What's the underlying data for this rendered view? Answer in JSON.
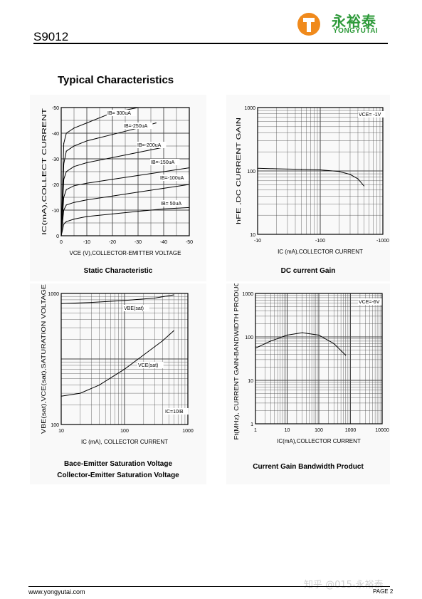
{
  "header": {
    "brand_cn": "永裕泰",
    "brand_en": "YONGYUTAI",
    "part_number": "S9012"
  },
  "section_title": "Typical Characteristics",
  "footer": {
    "website": "www.yongyutai.com",
    "page": "PAGE  2",
    "watermark": "知乎 @015-永裕泰"
  },
  "chart_data": [
    {
      "type": "line",
      "caption": "Static Characteristic",
      "xlabel": "VCE (V),COLLECTOR-EMITTER VOLTAGE",
      "ylabel": "IC(mA),COLLECT CURRENT",
      "xlim": [
        0,
        -50
      ],
      "ylim": [
        0,
        -50
      ],
      "x_ticks": [
        "0",
        "-10",
        "-20",
        "-30",
        "-40",
        "-50"
      ],
      "y_ticks": [
        "-50",
        "-40",
        "-30",
        "-20",
        "-10",
        "0"
      ],
      "series": [
        {
          "name": "IB= 300uA",
          "x": [
            0,
            -1,
            -2,
            -5,
            -10,
            -20,
            -30
          ],
          "y": [
            0,
            -36,
            -40,
            -42,
            -44,
            -48,
            -52
          ]
        },
        {
          "name": "IB=-250uA",
          "x": [
            0,
            -1,
            -2,
            -5,
            -10,
            -20,
            -30,
            -37
          ],
          "y": [
            0,
            -28,
            -33,
            -35,
            -37,
            -39.5,
            -42,
            -44
          ]
        },
        {
          "name": "IB=-200uA",
          "x": [
            0,
            -1,
            -2,
            -5,
            -10,
            -20,
            -30,
            -40
          ],
          "y": [
            0,
            -22,
            -25,
            -27,
            -28.5,
            -30.5,
            -32.5,
            -34.5
          ]
        },
        {
          "name": "IB=-150uA",
          "x": [
            0,
            -1,
            -2,
            -5,
            -10,
            -20,
            -30,
            -40,
            -50
          ],
          "y": [
            0,
            -15,
            -18,
            -19.5,
            -20.5,
            -22,
            -23.5,
            -25,
            -26.5
          ]
        },
        {
          "name": "IB=-100uA",
          "x": [
            0,
            -1,
            -2,
            -5,
            -10,
            -20,
            -30,
            -40,
            -50
          ],
          "y": [
            0,
            -10,
            -12,
            -13,
            -14,
            -15.5,
            -17,
            -18.5,
            -20
          ]
        },
        {
          "name": "IB= 50uA",
          "x": [
            0,
            -1,
            -2,
            -5,
            -10,
            -20,
            -30,
            -40,
            -50
          ],
          "y": [
            0,
            -4.5,
            -5.5,
            -6.5,
            -7.5,
            -8.5,
            -9.5,
            -10.5,
            -11
          ]
        }
      ]
    },
    {
      "type": "line",
      "caption": "DC current Gain",
      "xlabel": "IC (mA),COLLECTOR CURRENT",
      "ylabel": "hFE ,DC CURRENT GAIN",
      "x_scale": "log",
      "y_scale": "log",
      "xlim": [
        10,
        1000
      ],
      "ylim": [
        10,
        1000
      ],
      "x_ticks": [
        "-10",
        "-100",
        "-1000"
      ],
      "y_ticks": [
        "1000",
        "100",
        "10"
      ],
      "annotation": "VCE= -1V",
      "series": [
        {
          "x": [
            10,
            20,
            50,
            100,
            200,
            300,
            400,
            500
          ],
          "y": [
            110,
            108,
            106,
            104,
            98,
            88,
            75,
            58
          ]
        }
      ]
    },
    {
      "type": "line",
      "caption": "Bace-Emitter Saturation Voltage\nCollector-Emitter Saturation Voltage",
      "xlabel": "IC (mA), COLLECTOR CURRENT",
      "ylabel": "VBE(sat),VCE(sat),SATURATION VOLTAGE",
      "x_scale": "log",
      "y_scale": "log",
      "xlim": [
        10,
        1000
      ],
      "ylim": [
        10,
        1000
      ],
      "x_ticks": [
        "10",
        "100",
        "1000"
      ],
      "y_ticks": [
        "1000",
        "100"
      ],
      "annotation": "IC=10IB",
      "series": [
        {
          "name": "VBE(sat)",
          "x": [
            10,
            30,
            100,
            300,
            600
          ],
          "y": [
            700,
            730,
            780,
            850,
            950
          ]
        },
        {
          "name": "VCE(sat)",
          "x": [
            10,
            20,
            40,
            100,
            200,
            400,
            600
          ],
          "y": [
            27,
            30,
            40,
            70,
            115,
            190,
            270
          ]
        }
      ]
    },
    {
      "type": "line",
      "caption": "Current Gain Bandwidth Product",
      "xlabel": "IC(mA),COLLECTOR CURRENT",
      "ylabel": "Ft(MHz), CURRENT GAIN-BANDWIDTH PRODUCT",
      "x_scale": "log",
      "y_scale": "log",
      "xlim": [
        1,
        10000
      ],
      "ylim": [
        1,
        1000
      ],
      "x_ticks": [
        "1",
        "10",
        "100",
        "1000",
        "10000"
      ],
      "y_ticks": [
        "1000",
        "100",
        "10",
        "1"
      ],
      "annotation": "VCE=-6V",
      "series": [
        {
          "x": [
            1,
            3,
            10,
            30,
            100,
            300,
            700
          ],
          "y": [
            55,
            80,
            110,
            125,
            110,
            70,
            38
          ]
        }
      ]
    }
  ]
}
